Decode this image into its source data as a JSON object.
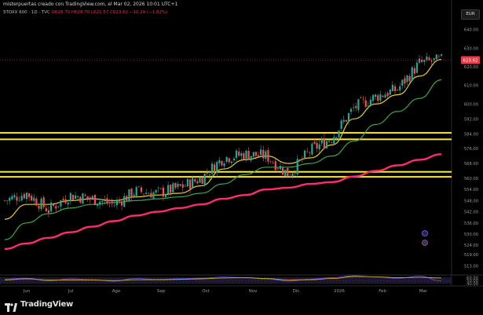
{
  "header": {
    "title": "misterpuertas creado con TradingView.com, el Mar 02, 2026 10:01 UTC+1",
    "symbol": "STOXX 600 · 1D · TVC",
    "open": "O628.70",
    "high": "H628.70",
    "low": "L621.57",
    "close": "C623.62",
    "change": "−10.24 (−1.62%)"
  },
  "currency": "EUR",
  "brand": "TradingView",
  "colors": {
    "up": "#26a69a",
    "down": "#ef5350",
    "ma_fast": "#e8cc2c",
    "ma_mid": "#3fa54a",
    "ma_slow": "#ff2d6f",
    "levels": "#f4ea3a",
    "last_price_bg": "#f23645",
    "osc_fast": "#5b4fd6",
    "osc_slow": "#d6a338"
  },
  "chart_data": {
    "type": "line",
    "title": "",
    "xlabel": "",
    "ylabel": "",
    "price_axis_ticks": [
      640.0,
      630.0,
      620.0,
      610.0,
      600.0,
      592.0,
      584.0,
      576.0,
      568.0,
      560.0,
      554.0,
      548.0,
      542.0,
      536.0,
      530.0,
      524.0,
      519.0,
      513.0
    ],
    "oscillator_ticks": [
      60.0,
      50.0,
      40.0
    ],
    "x_ticks": [
      "Jun",
      "Jul",
      "Ago",
      "Sep",
      "Oct",
      "Nov",
      "Dic",
      "2026",
      "Feb",
      "Mar"
    ],
    "last_price_label": "623.62",
    "last_price": 623.62,
    "grid": false,
    "horizontal_levels": [
      584.5,
      581.0,
      563.5,
      560.8
    ],
    "series": [
      {
        "name": "",
        "kind": "candles",
        "dates": [
          "2025-05-19",
          "2025-06-02",
          "2025-06-16",
          "2025-06-30",
          "2025-07-14",
          "2025-07-28",
          "2025-08-11",
          "2025-08-25",
          "2025-09-08",
          "2025-09-22",
          "2025-10-06",
          "2025-10-20",
          "2025-11-03",
          "2025-11-17",
          "2025-12-01",
          "2025-12-15",
          "2025-12-29",
          "2026-01-12",
          "2026-01-26",
          "2026-02-09",
          "2026-02-23"
        ],
        "close": [
          548,
          552,
          543,
          551,
          549,
          546,
          553,
          552,
          555,
          560,
          571,
          573,
          572,
          562,
          575,
          582,
          598,
          604,
          608,
          622,
          623.62
        ]
      },
      {
        "name": "",
        "kind": "ma_fast",
        "values": [
          538,
          546,
          546,
          548,
          549,
          548,
          550,
          551,
          552,
          556,
          565,
          570,
          572,
          568,
          571,
          578,
          592,
          600,
          605,
          615,
          624
        ]
      },
      {
        "name": "",
        "kind": "ma_mid",
        "values": [
          527,
          536,
          541,
          544,
          546,
          547,
          548,
          549,
          550,
          552,
          557,
          562,
          566,
          566,
          568,
          572,
          580,
          589,
          596,
          603,
          613
        ]
      },
      {
        "name": "",
        "kind": "ma_slow",
        "values": [
          522,
          525,
          528,
          531,
          534,
          537,
          540,
          542,
          544,
          546,
          549,
          551,
          554,
          555,
          557,
          558,
          561,
          564,
          567,
          570,
          573
        ]
      },
      {
        "name": "",
        "kind": "osc_fast",
        "values": [
          55,
          58,
          49,
          56,
          53,
          48,
          57,
          54,
          56,
          58,
          62,
          60,
          56,
          48,
          55,
          60,
          67,
          62,
          58,
          65,
          49
        ]
      },
      {
        "name": "",
        "kind": "osc_slow",
        "values": [
          52,
          56,
          52,
          52,
          52,
          50,
          53,
          53,
          54,
          56,
          59,
          60,
          57,
          52,
          53,
          57,
          64,
          63,
          60,
          61,
          59
        ]
      }
    ]
  }
}
